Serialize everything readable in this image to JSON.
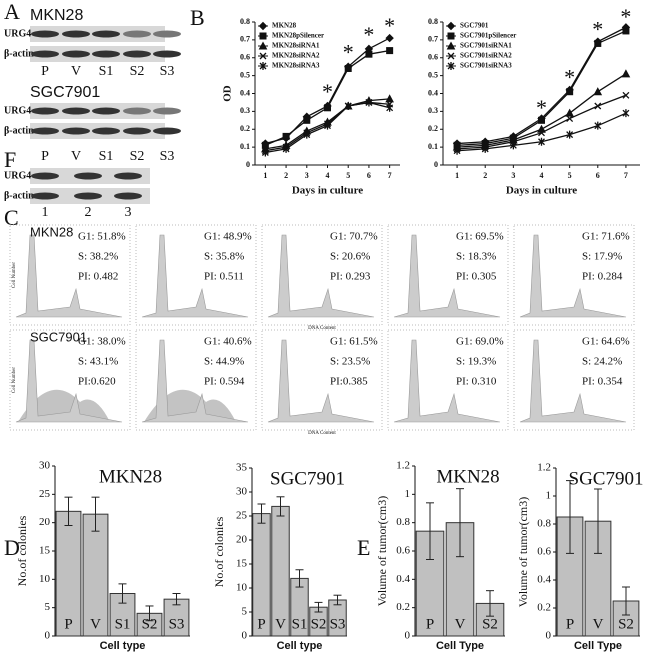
{
  "panel_labels": [
    "A",
    "B",
    "C",
    "D",
    "E",
    "F"
  ],
  "blots": [
    {
      "title": "MKN28",
      "rows": [
        "URG4",
        "β-actin"
      ],
      "lanes": [
        "P",
        "V",
        "S1",
        "S2",
        "S3"
      ]
    },
    {
      "title": "SGC7901",
      "rows": [
        "URG4",
        "β-actin"
      ],
      "lanes": [
        "P",
        "V",
        "S1",
        "S2",
        "S3"
      ]
    },
    {
      "rows": [
        "URG4",
        "β-actin"
      ],
      "lanes": [
        "1",
        "2",
        "3"
      ]
    }
  ],
  "flow": {
    "y_label": "Cell Number",
    "x_label": "DNA Content",
    "groups": [
      {
        "name": "MKN28",
        "samples": [
          [
            "G1: 51.8%",
            "S: 38.2%",
            "PI: 0.482"
          ],
          [
            "G1: 48.9%",
            "S: 35.8%",
            "PI: 0.511"
          ],
          [
            "G1: 70.7%",
            "S: 20.6%",
            "PI: 0.293"
          ],
          [
            "G1: 69.5%",
            "S: 18.3%",
            "PI: 0.305"
          ],
          [
            "G1: 71.6%",
            "S: 17.9%",
            "PI: 0.284"
          ]
        ]
      },
      {
        "name": "SGC7901",
        "samples": [
          [
            "G1: 38.0%",
            "S: 43.1%",
            "PI:0.620"
          ],
          [
            "G1: 40.6%",
            "S: 44.9%",
            "PI: 0.594"
          ],
          [
            "G1: 61.5%",
            "S: 23.5%",
            "PI:0.385"
          ],
          [
            "G1: 69.0%",
            "S: 19.3%",
            "PI: 0.310"
          ],
          [
            "G1: 64.6%",
            "S: 24.2%",
            "PI: 0.354"
          ]
        ]
      }
    ]
  },
  "chart_data": [
    {
      "type": "line",
      "x_label": "Days in culture",
      "y_label": "OD",
      "legend": "upper left",
      "x": [
        1,
        2,
        3,
        4,
        5,
        6,
        7
      ],
      "xlim": [
        0.5,
        7.5
      ],
      "xticks": [
        1,
        2,
        3,
        4,
        5,
        6,
        7
      ],
      "ylim": [
        0,
        0.8
      ],
      "yticks": [
        0,
        0.1,
        0.2,
        0.3,
        0.4,
        0.5,
        0.6,
        0.7,
        0.8
      ],
      "series": [
        {
          "name": "MKN28",
          "color": "#111111",
          "values": [
            0.12,
            0.15,
            0.27,
            0.33,
            0.55,
            0.65,
            0.71
          ]
        },
        {
          "name": "MKN28pSilencer",
          "color": "#111111",
          "values": [
            0.11,
            0.16,
            0.25,
            0.32,
            0.54,
            0.62,
            0.64
          ]
        },
        {
          "name": "MKN28siRNA1",
          "color": "#111111",
          "values": [
            0.09,
            0.11,
            0.19,
            0.24,
            0.33,
            0.36,
            0.37
          ]
        },
        {
          "name": "MKN28siRNA2",
          "color": "#111111",
          "values": [
            0.08,
            0.1,
            0.18,
            0.23,
            0.33,
            0.35,
            0.34
          ]
        },
        {
          "name": "MKN28siRNA3",
          "color": "#111111",
          "values": [
            0.07,
            0.09,
            0.17,
            0.22,
            0.33,
            0.35,
            0.32
          ]
        }
      ],
      "annotations": [
        {
          "text": "*",
          "x": 4,
          "y": 0.42
        },
        {
          "text": "*",
          "x": 5,
          "y": 0.64
        },
        {
          "text": "*",
          "x": 6,
          "y": 0.74
        },
        {
          "text": "*",
          "x": 7,
          "y": 0.79
        }
      ]
    },
    {
      "type": "line",
      "x_label": "Days in culture",
      "legend": "upper left",
      "x": [
        1,
        2,
        3,
        4,
        5,
        6,
        7
      ],
      "xlim": [
        0.5,
        7.5
      ],
      "xticks": [
        1,
        2,
        3,
        4,
        5,
        6,
        7
      ],
      "ylim": [
        0,
        0.8
      ],
      "yticks": [
        0,
        0.1,
        0.2,
        0.3,
        0.4,
        0.5,
        0.6,
        0.7,
        0.8
      ],
      "series": [
        {
          "name": "SGC7901",
          "color": "#111111",
          "values": [
            0.12,
            0.13,
            0.16,
            0.26,
            0.42,
            0.69,
            0.77
          ]
        },
        {
          "name": "SGC7901pSilencer",
          "color": "#111111",
          "values": [
            0.11,
            0.12,
            0.15,
            0.25,
            0.41,
            0.68,
            0.75
          ]
        },
        {
          "name": "SGC7901siRNA1",
          "color": "#111111",
          "values": [
            0.1,
            0.11,
            0.14,
            0.2,
            0.29,
            0.41,
            0.51
          ]
        },
        {
          "name": "SGC7901siRNA2",
          "color": "#111111",
          "values": [
            0.09,
            0.1,
            0.13,
            0.18,
            0.26,
            0.33,
            0.39
          ]
        },
        {
          "name": "SGC7901siRNA3",
          "color": "#111111",
          "values": [
            0.08,
            0.09,
            0.11,
            0.13,
            0.17,
            0.22,
            0.29
          ]
        }
      ],
      "annotations": [
        {
          "text": "*",
          "x": 4,
          "y": 0.33
        },
        {
          "text": "*",
          "x": 5,
          "y": 0.5
        },
        {
          "text": "*",
          "x": 6,
          "y": 0.77
        },
        {
          "text": "*",
          "x": 7,
          "y": 0.84
        }
      ]
    },
    {
      "type": "bar",
      "title": "MKN28",
      "x_label": "Cell type",
      "y_label": "No.of colonies",
      "color": "#c0c0c0",
      "categories": [
        "P",
        "V",
        "S1",
        "S2",
        "S3"
      ],
      "values": [
        22,
        21.5,
        7.5,
        4,
        6.5
      ],
      "errors": [
        2.5,
        3,
        1.7,
        1.3,
        1
      ],
      "ylim": [
        0,
        30
      ],
      "yticks": [
        0,
        5,
        10,
        15,
        20,
        25,
        30
      ]
    },
    {
      "type": "bar",
      "title": "SGC7901",
      "x_label": "Cell type",
      "y_label": "No.of colonies",
      "color": "#c0c0c0",
      "categories": [
        "P",
        "V",
        "S1",
        "S2",
        "S3"
      ],
      "values": [
        25.5,
        27,
        12,
        6,
        7.5
      ],
      "errors": [
        2,
        2,
        1.8,
        1,
        1
      ],
      "ylim": [
        0,
        35
      ],
      "yticks": [
        0,
        5,
        10,
        15,
        20,
        25,
        30,
        35
      ]
    },
    {
      "type": "bar",
      "title": "MKN28",
      "x_label": "Cell Type",
      "y_label": "Volume of tumor(cm3)",
      "color": "#c0c0c0",
      "categories": [
        "P",
        "V",
        "S2"
      ],
      "values": [
        0.74,
        0.8,
        0.23
      ],
      "errors": [
        0.2,
        0.24,
        0.09
      ],
      "ylim": [
        0,
        1.2
      ],
      "yticks": [
        0,
        0.2,
        0.4,
        0.6,
        0.8,
        1,
        1.2
      ]
    },
    {
      "type": "bar",
      "title": "SGC7901",
      "x_label": "Cell Type",
      "y_label": "Volume of tumor(cm3)",
      "color": "#c0c0c0",
      "categories": [
        "P",
        "V",
        "S2"
      ],
      "values": [
        0.85,
        0.82,
        0.25
      ],
      "errors": [
        0.26,
        0.23,
        0.1
      ],
      "ylim": [
        0,
        1.2
      ],
      "yticks": [
        0,
        0.2,
        0.4,
        0.6,
        0.8,
        1,
        1.2
      ]
    }
  ]
}
